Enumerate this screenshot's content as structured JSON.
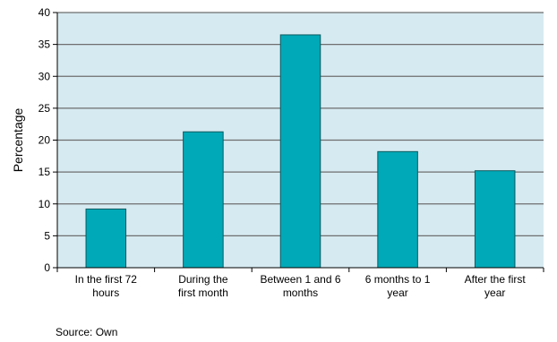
{
  "chart_data": {
    "type": "bar",
    "title": "",
    "xlabel": "",
    "ylabel": "Percentage",
    "ylim": [
      0,
      40
    ],
    "yticks": [
      0,
      5,
      10,
      15,
      20,
      25,
      30,
      35,
      40
    ],
    "grid": true,
    "categories": [
      [
        "In the first 72",
        "hours"
      ],
      [
        "During the",
        "first month"
      ],
      [
        "Between 1 and 6",
        "months"
      ],
      [
        "6 months to 1",
        "year"
      ],
      [
        "After the first",
        "year"
      ]
    ],
    "values": [
      9.2,
      21.3,
      36.5,
      18.2,
      15.2
    ]
  },
  "colors": {
    "bar": "#00a9b7",
    "bar_stroke": "#0b5a60",
    "plot_background": "#d6eaf1",
    "gridline": "#6e6e6e"
  },
  "source": "Source: Own"
}
